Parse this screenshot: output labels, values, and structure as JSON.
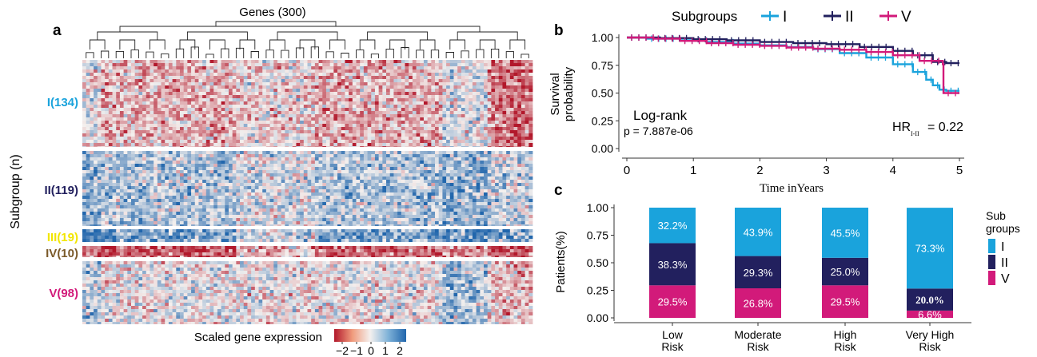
{
  "colors": {
    "I": "#1aa3dc",
    "II": "#22205e",
    "III": "#f2e600",
    "IV": "#7b5a2a",
    "V": "#d21a7a",
    "heat_low": "#b2182b",
    "heat_mid": "#f4f0ee",
    "heat_high": "#2166ac"
  },
  "panel_a": {
    "label": "a",
    "genes_label": "Genes (300)",
    "y_title": "Subgroup (n)",
    "groups": [
      {
        "key": "I",
        "label": "I(134)",
        "n": 134
      },
      {
        "key": "II",
        "label": "II(119)",
        "n": 119
      },
      {
        "key": "III",
        "label": "III(19)",
        "n": 19
      },
      {
        "key": "IV",
        "label": "IV(10)",
        "n": 10
      },
      {
        "key": "V",
        "label": "V(98)",
        "n": 98
      }
    ],
    "legend_title": "Scaled gene expression",
    "legend_ticks": [
      "−2",
      "−1",
      "0",
      "1",
      "2"
    ]
  },
  "chart_data": [
    {
      "type": "heatmap",
      "panel": "a",
      "columns": 300,
      "rows_per_group": {
        "I": 134,
        "II": 119,
        "III": 19,
        "IV": 10,
        "V": 98
      },
      "color_range": [
        -2,
        2
      ],
      "column_trend_note": "expression centred by group: I mostly low, II mostly high, III very high, IV very low, V near zero"
    },
    {
      "type": "line",
      "panel": "b",
      "label": "b",
      "legend_title": "Subgroups",
      "xlabel": "Time inYears",
      "ylabel_line1": "Survival",
      "ylabel_line2": "probability",
      "xlim": [
        0,
        5
      ],
      "ylim": [
        0,
        1
      ],
      "xticks": [
        "0",
        "1",
        "2",
        "3",
        "4",
        "5"
      ],
      "yticks": [
        "0.00",
        "0.25",
        "0.50",
        "0.75",
        "1.00"
      ],
      "series": [
        {
          "name": "I",
          "key": "I",
          "x": [
            0,
            0.3,
            0.8,
            1.2,
            1.6,
            2.0,
            2.4,
            2.8,
            3.2,
            3.6,
            4.0,
            4.3,
            4.5,
            4.6,
            4.7,
            4.8,
            5.0
          ],
          "y": [
            1.0,
            0.99,
            0.975,
            0.96,
            0.945,
            0.93,
            0.915,
            0.895,
            0.86,
            0.82,
            0.76,
            0.69,
            0.62,
            0.57,
            0.53,
            0.52,
            0.52
          ]
        },
        {
          "name": "II",
          "key": "II",
          "x": [
            0,
            0.5,
            1.0,
            1.5,
            2.0,
            2.5,
            3.0,
            3.5,
            4.0,
            4.3,
            4.6,
            4.8,
            5.0
          ],
          "y": [
            1.0,
            0.995,
            0.985,
            0.975,
            0.96,
            0.95,
            0.94,
            0.915,
            0.88,
            0.84,
            0.78,
            0.77,
            0.77
          ]
        },
        {
          "name": "V",
          "key": "V",
          "x": [
            0,
            0.4,
            0.8,
            1.2,
            1.6,
            2.0,
            2.4,
            2.8,
            3.2,
            3.6,
            4.0,
            4.4,
            4.75,
            4.76,
            5.0
          ],
          "y": [
            1.0,
            0.99,
            0.97,
            0.95,
            0.935,
            0.925,
            0.91,
            0.9,
            0.89,
            0.87,
            0.84,
            0.79,
            0.76,
            0.5,
            0.5
          ]
        }
      ],
      "annotations": {
        "logrank": "Log-rank",
        "pvalue": "p = 7.887e-06",
        "hr_prefix": "HR",
        "hr_sub": "I-II",
        "hr_value": "= 0.22"
      }
    },
    {
      "type": "bar",
      "panel": "c",
      "label": "c",
      "stacked": true,
      "ylabel": "Patients(%)",
      "ylim": [
        0,
        1
      ],
      "yticks": [
        "0.00",
        "0.25",
        "0.50",
        "0.75",
        "1.00"
      ],
      "categories": [
        {
          "line1": "Low",
          "line2": "Risk"
        },
        {
          "line1": "Moderate",
          "line2": "Risk"
        },
        {
          "line1": "High",
          "line2": "Risk"
        },
        {
          "line1": "Very High",
          "line2": "Risk"
        }
      ],
      "legend_title_line1": "Sub",
      "legend_title_line2": "groups",
      "series": [
        {
          "name": "V",
          "key": "V",
          "values": [
            0.295,
            0.268,
            0.295,
            0.066
          ],
          "labels": [
            "29.5%",
            "26.8%",
            "29.5%",
            "6.6%"
          ]
        },
        {
          "name": "II",
          "key": "II",
          "values": [
            0.383,
            0.293,
            0.25,
            0.2
          ],
          "labels": [
            "38.3%",
            "29.3%",
            "25.0%",
            "20.0%"
          ]
        },
        {
          "name": "I",
          "key": "I",
          "values": [
            0.322,
            0.439,
            0.455,
            0.733
          ],
          "labels": [
            "32.2%",
            "43.9%",
            "45.5%",
            "73.3%"
          ]
        }
      ]
    }
  ]
}
